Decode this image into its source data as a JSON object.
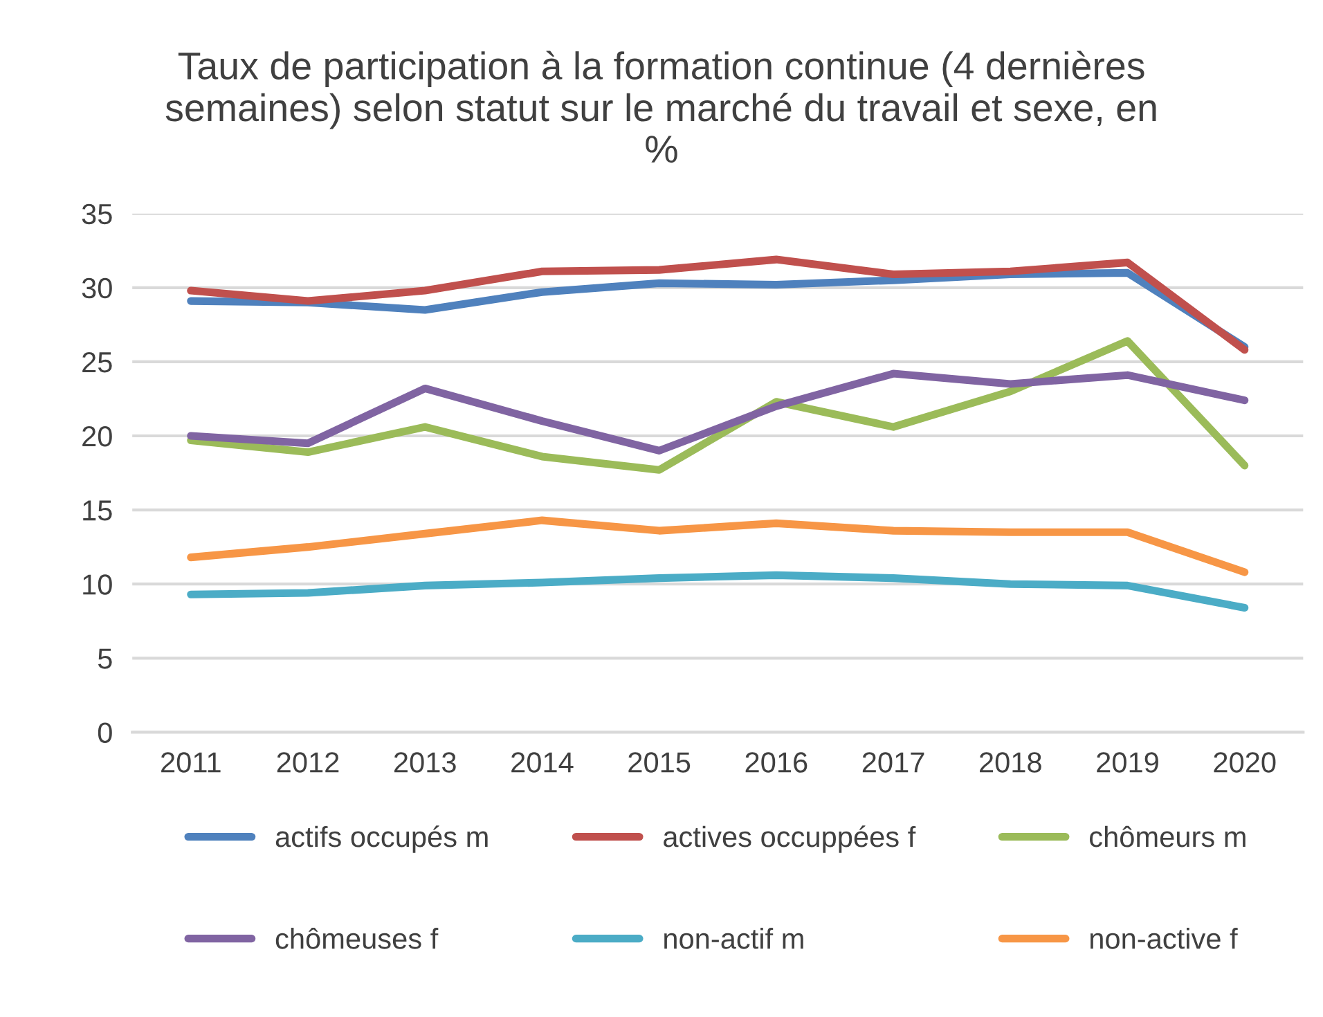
{
  "chart_data": {
    "type": "line",
    "title": "Taux de participation à la formation continue (4 dernières semaines) selon statut sur le marché du travail et sexe, en %",
    "categories": [
      "2011",
      "2012",
      "2013",
      "2014",
      "2015",
      "2016",
      "2017",
      "2018",
      "2019",
      "2020"
    ],
    "series": [
      {
        "name": "actifs occupés m",
        "color": "#4f81bd",
        "values": [
          29.1,
          29.0,
          28.5,
          29.7,
          30.3,
          30.2,
          30.5,
          30.9,
          31.0,
          26.0
        ]
      },
      {
        "name": "actives occuppées f",
        "color": "#c0504d",
        "values": [
          29.8,
          29.1,
          29.8,
          31.1,
          31.2,
          31.9,
          30.9,
          31.1,
          31.7,
          25.8
        ]
      },
      {
        "name": "chômeurs m",
        "color": "#9bbb59",
        "values": [
          19.7,
          18.9,
          20.6,
          18.6,
          17.7,
          22.3,
          20.6,
          23.0,
          26.4,
          18.0
        ]
      },
      {
        "name": "chômeuses f",
        "color": "#8064a2",
        "values": [
          20.0,
          19.5,
          23.2,
          21.0,
          19.0,
          22.0,
          24.2,
          23.5,
          24.1,
          22.4
        ]
      },
      {
        "name": "non-actif m",
        "color": "#4bacc6",
        "values": [
          9.3,
          9.4,
          9.9,
          10.1,
          10.4,
          10.6,
          10.4,
          10.0,
          9.9,
          8.4
        ]
      },
      {
        "name": "non-active f",
        "color": "#f79646",
        "values": [
          11.8,
          12.5,
          13.4,
          14.3,
          13.6,
          14.1,
          13.6,
          13.5,
          13.5,
          10.8
        ]
      }
    ],
    "ylim": [
      0,
      35
    ],
    "yticks": [
      0,
      5,
      10,
      15,
      20,
      25,
      30,
      35
    ],
    "grid": "y",
    "legend": "bottom",
    "marker": "none",
    "line_style": "solid"
  }
}
